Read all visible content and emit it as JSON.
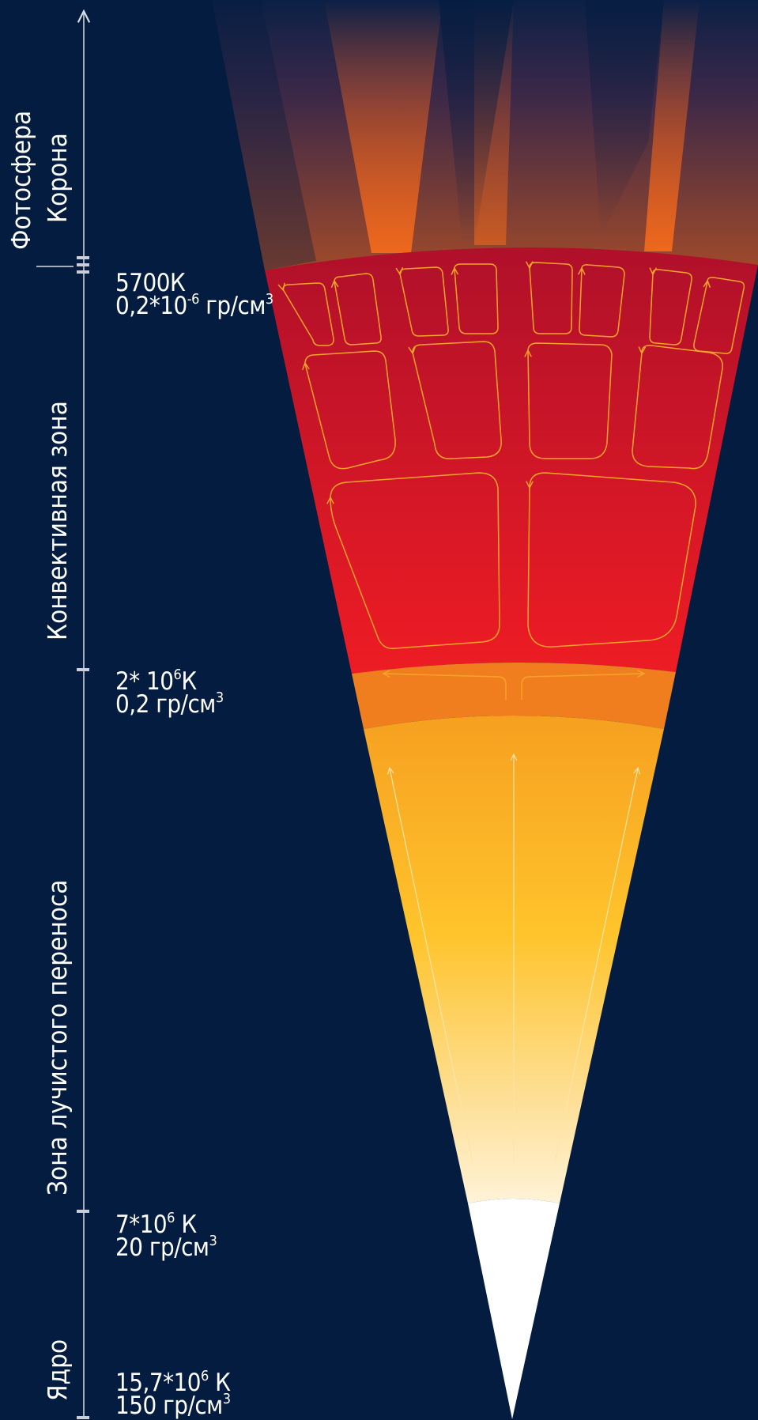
{
  "zones": {
    "photosphere": "Фотосфера",
    "corona": "Корона",
    "convective": "Конвективная зона",
    "radiative": "Зона лучистого переноса",
    "core": "Ядро"
  },
  "boundaries": [
    {
      "temp_base": "5700К",
      "temp_exp": "",
      "temp_unit": "",
      "dens_base": "0,2*10",
      "dens_exp": "-6",
      "dens_unit": " гр/см",
      "dens_unit_exp": "3"
    },
    {
      "temp_base": "2* 10",
      "temp_exp": "6",
      "temp_unit": "К",
      "dens_base": "0,2 гр/см",
      "dens_exp": "3",
      "dens_unit": "",
      "dens_unit_exp": ""
    },
    {
      "temp_base": "7*10",
      "temp_exp": "6",
      "temp_unit": " К",
      "dens_base": "20 гр/см",
      "dens_exp": "3",
      "dens_unit": "",
      "dens_unit_exp": ""
    },
    {
      "temp_base": "15,7*10",
      "temp_exp": "6",
      "temp_unit": " К",
      "dens_base": "150 гр/см",
      "dens_exp": "3",
      "dens_unit": "",
      "dens_unit_exp": ""
    }
  ],
  "colors": {
    "background": "#041c40",
    "convective_top": "#b0102a",
    "convective_bottom": "#ee1c24",
    "transition": "#f07e1e",
    "radiative_top": "#f6a020",
    "radiative_mid": "#ffc42c",
    "core": "#ffffff",
    "cells": "#f7a428"
  }
}
